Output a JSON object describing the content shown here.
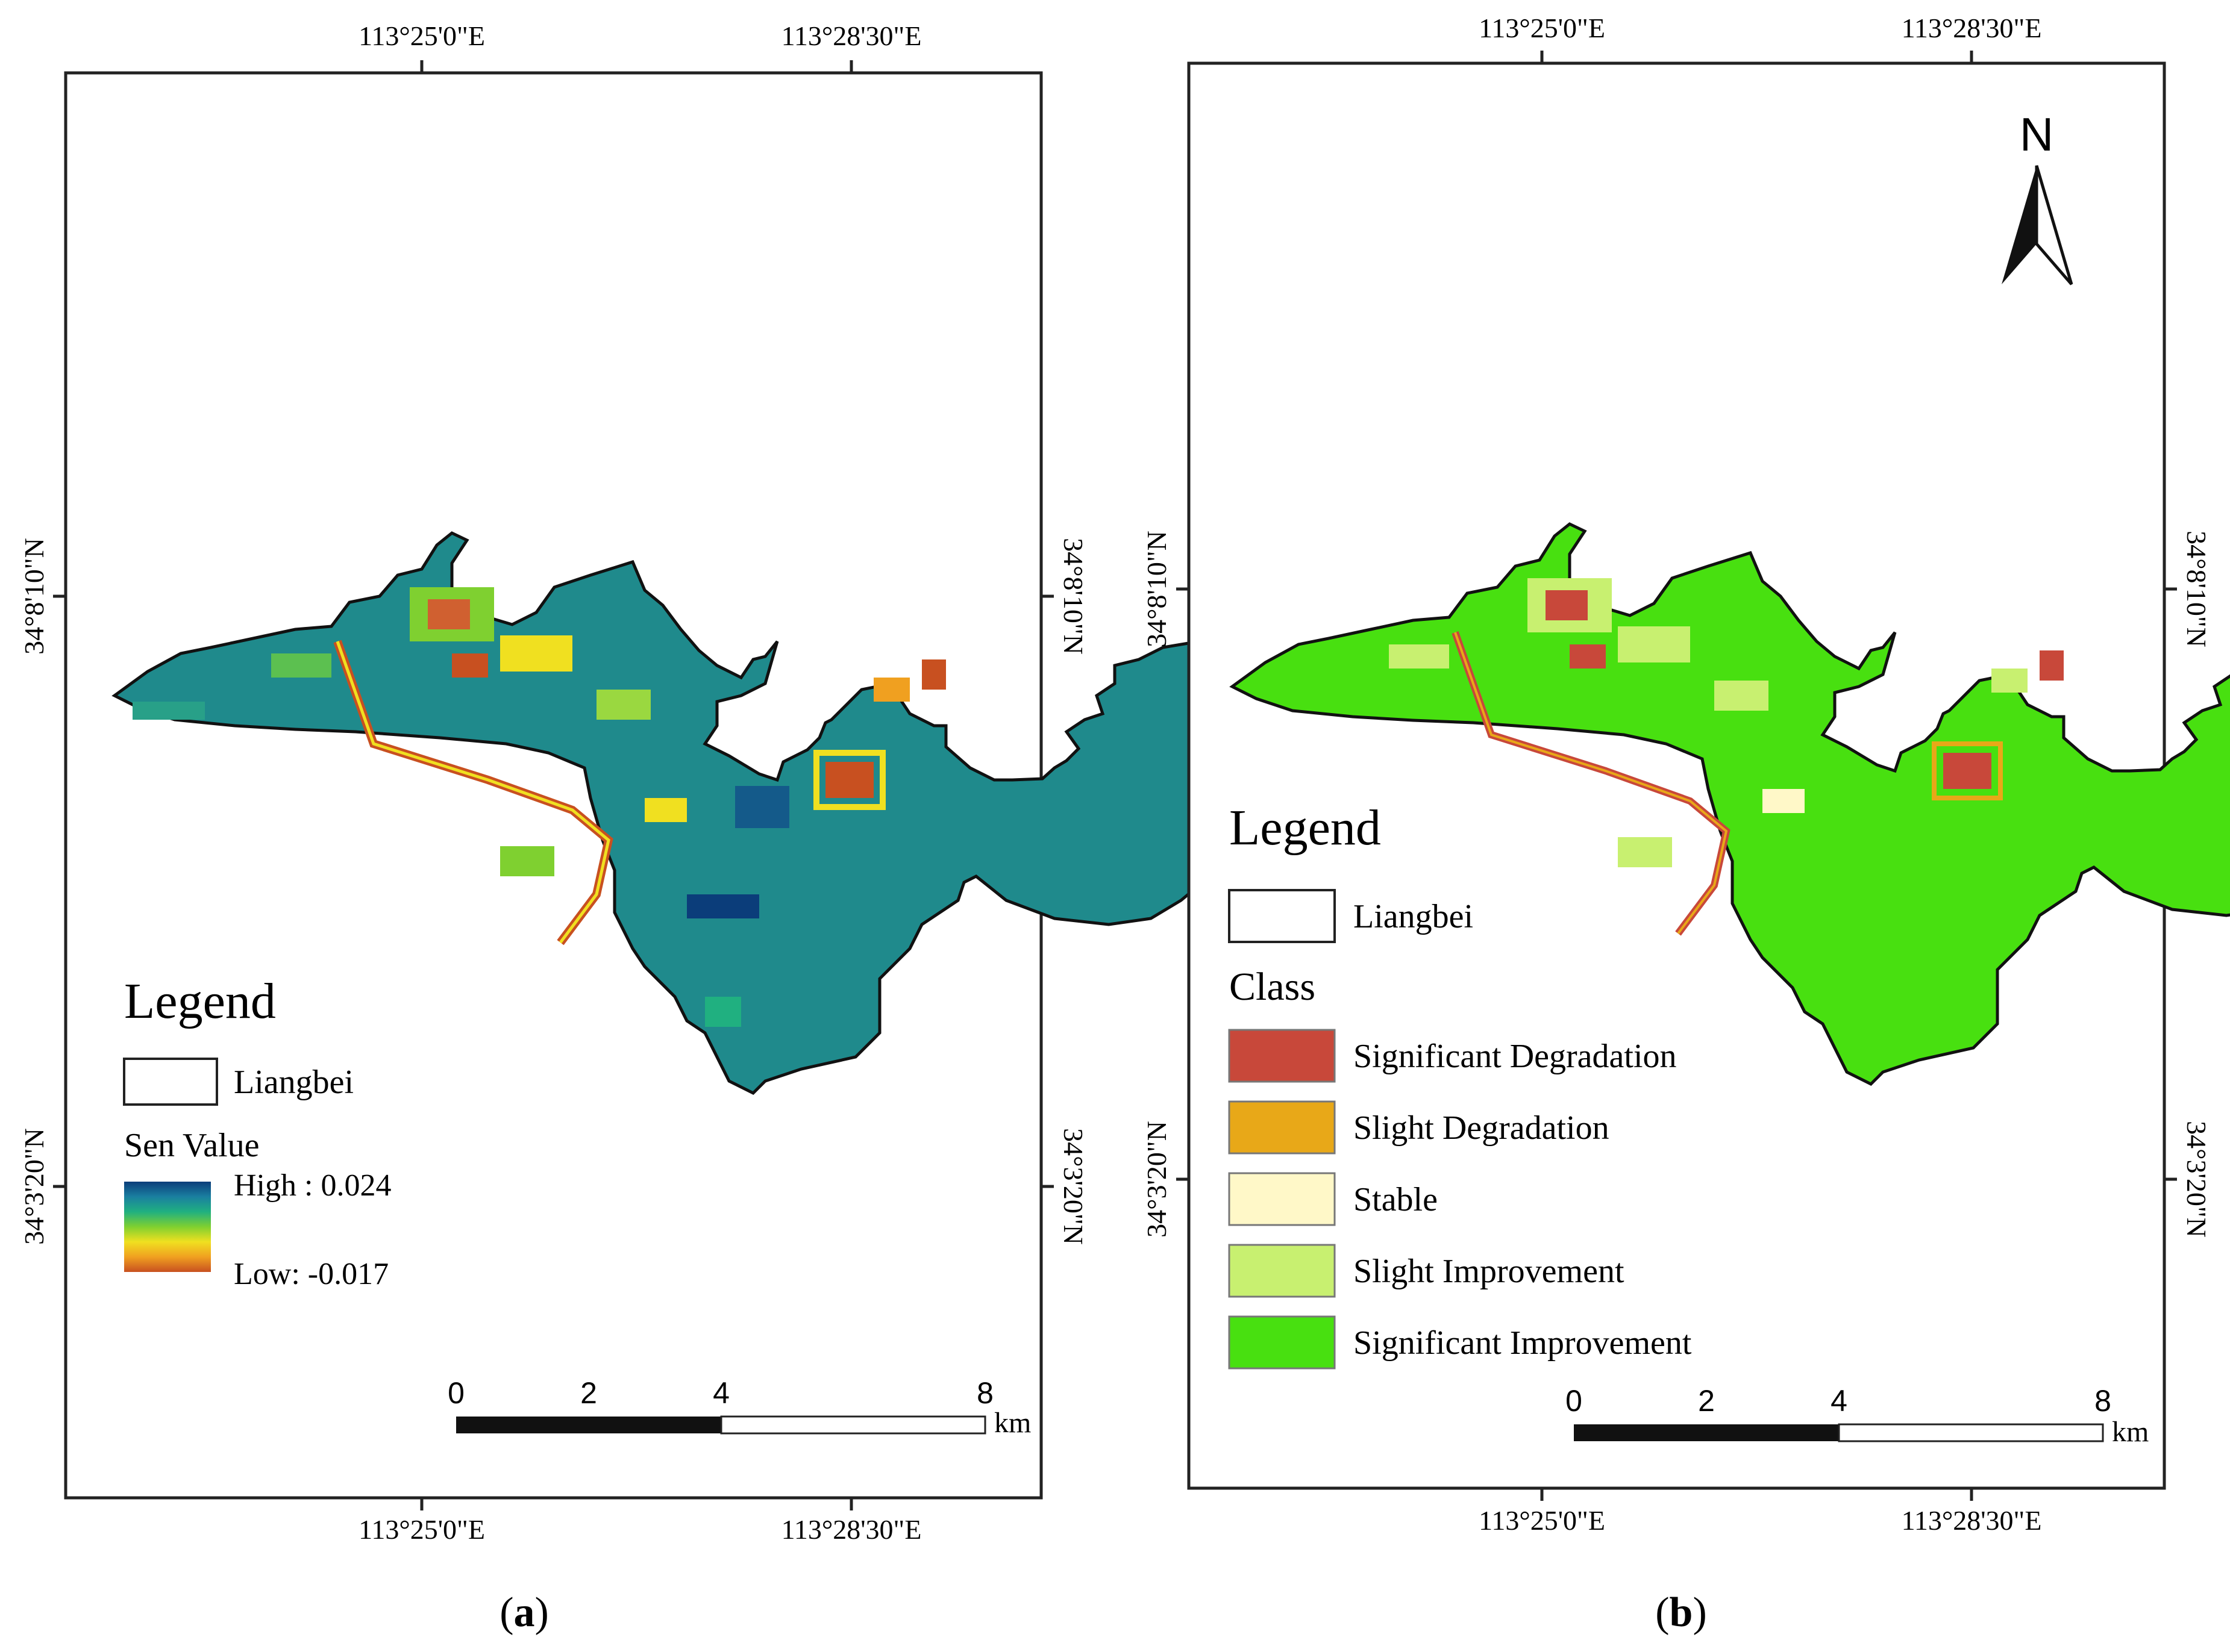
{
  "panel_a": {
    "coords_top": [
      "113°25'0\"E",
      "113°28'30\"E"
    ],
    "coords_bottom": [
      "113°25'0\"E",
      "113°28'30\"E"
    ],
    "coords_left": [
      "34°8'10\"N",
      "34°3'20\"N"
    ],
    "coords_right": [
      "34°8'10\"N",
      "34°3'20\"N"
    ],
    "legend_title": "Legend",
    "boundary_label": "Liangbei",
    "ramp_title": "Sen Value",
    "ramp_high": "High : 0.024",
    "ramp_low": "Low: -0.017",
    "ramp_colors": [
      "#0b3d7a",
      "#1a7fa0",
      "#20b080",
      "#7fd030",
      "#f0e020",
      "#f0a020",
      "#c85020"
    ],
    "scale_ticks": [
      "0",
      "2",
      "4",
      "8"
    ],
    "scale_unit": "km",
    "caption": "a"
  },
  "panel_b": {
    "coords_top": [
      "113°25'0\"E",
      "113°28'30\"E"
    ],
    "coords_bottom": [
      "113°25'0\"E",
      "113°28'30\"E"
    ],
    "coords_left": [
      "34°8'10\"N",
      "34°3'20\"N"
    ],
    "coords_right": [
      "34°8'10\"N",
      "34°3'20\"N"
    ],
    "north_label": "N",
    "legend_title": "Legend",
    "boundary_label": "Liangbei",
    "class_title": "Class",
    "classes": [
      {
        "label": "Significant Degradation",
        "color": "#c8483a"
      },
      {
        "label": "Slight Degradation",
        "color": "#e8a818"
      },
      {
        "label": "Stable",
        "color": "#fff8c8"
      },
      {
        "label": "Slight Improvement",
        "color": "#c8f070"
      },
      {
        "label": "Significant Improvement",
        "color": "#48e010"
      }
    ],
    "scale_ticks": [
      "0",
      "2",
      "4",
      "8"
    ],
    "scale_unit": "km",
    "caption": "b"
  }
}
